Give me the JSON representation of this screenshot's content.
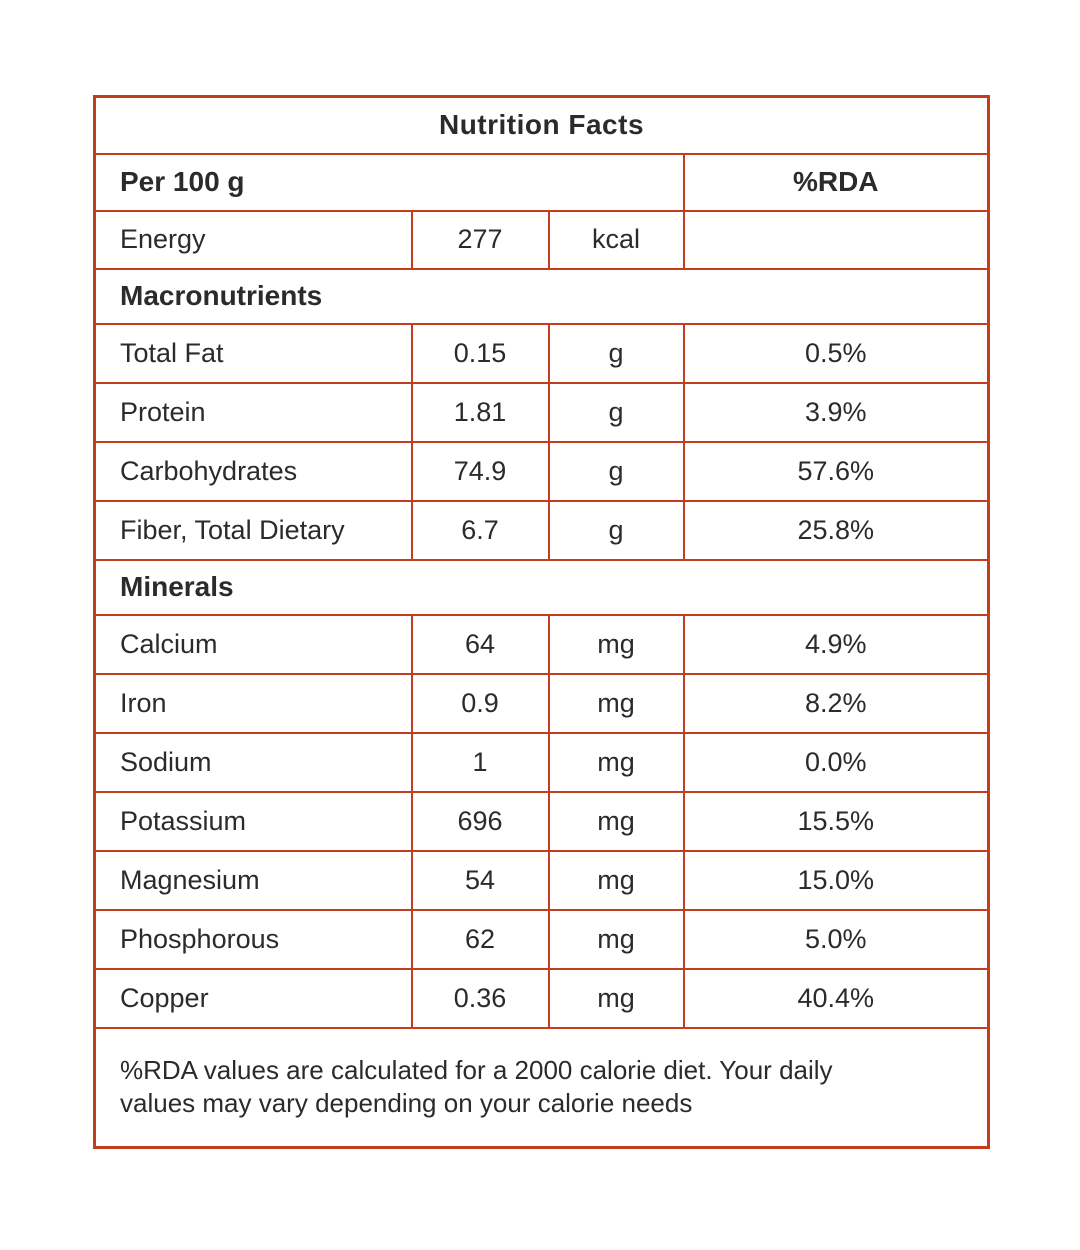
{
  "title": "Nutrition Facts",
  "header": {
    "per_label": "Per 100 g",
    "rda_label": "%RDA"
  },
  "energy": {
    "name": "Energy",
    "value": "277",
    "unit": "kcal"
  },
  "macronutrients": {
    "label": "Macronutrients",
    "rows": [
      {
        "name": "Total Fat",
        "value": "0.15",
        "unit": "g",
        "rda": "0.5%"
      },
      {
        "name": "Protein",
        "value": "1.81",
        "unit": "g",
        "rda": "3.9%"
      },
      {
        "name": "Carbohydrates",
        "value": "74.9",
        "unit": "g",
        "rda": "57.6%"
      },
      {
        "name": "Fiber, Total Dietary",
        "value": "6.7",
        "unit": "g",
        "rda": "25.8%"
      }
    ]
  },
  "minerals": {
    "label": "Minerals",
    "rows": [
      {
        "name": "Calcium",
        "value": "64",
        "unit": "mg",
        "rda": "4.9%"
      },
      {
        "name": "Iron",
        "value": "0.9",
        "unit": "mg",
        "rda": "8.2%"
      },
      {
        "name": "Sodium",
        "value": "1",
        "unit": "mg",
        "rda": "0.0%"
      },
      {
        "name": "Potassium",
        "value": "696",
        "unit": "mg",
        "rda": "15.5%"
      },
      {
        "name": "Magnesium",
        "value": "54",
        "unit": "mg",
        "rda": "15.0%"
      },
      {
        "name": "Phosphorous",
        "value": "62",
        "unit": "mg",
        "rda": "5.0%"
      },
      {
        "name": "Copper",
        "value": "0.36",
        "unit": "mg",
        "rda": "40.4%"
      }
    ]
  },
  "footnote": "%RDA values are calculated for a 2000 calorie diet. Your daily values may vary depending on your calorie needs",
  "colors": {
    "border": "#c23e1f",
    "text": "#2b2b2b",
    "background": "#ffffff"
  }
}
